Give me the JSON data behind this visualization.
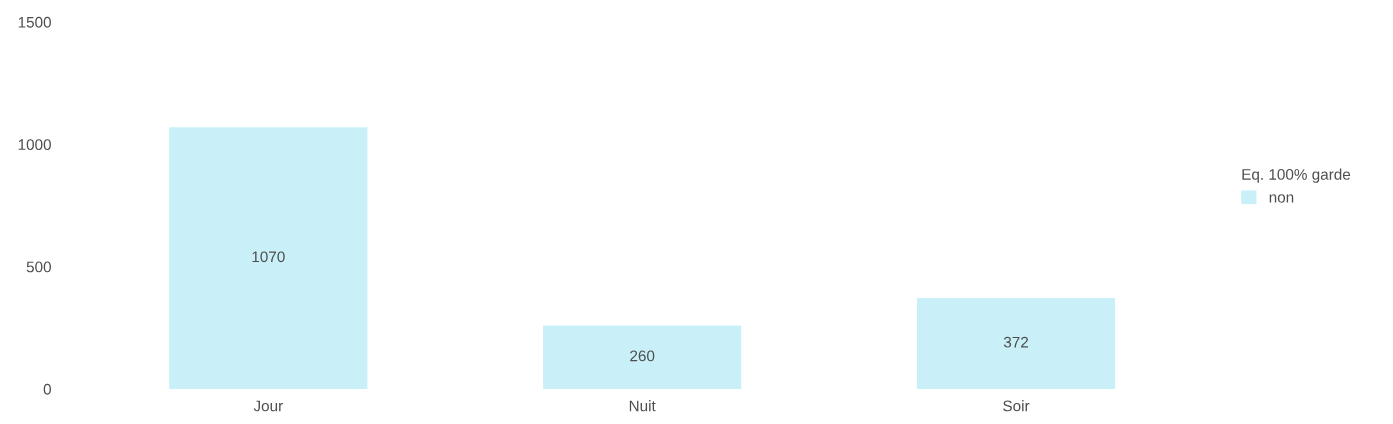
{
  "chart_data": {
    "type": "bar",
    "categories": [
      "Jour",
      "Nuit",
      "Soir"
    ],
    "series": [
      {
        "name": "non",
        "color": "#c9f0f9",
        "values": [
          1070,
          260,
          372
        ]
      }
    ],
    "ylim": [
      0,
      1500
    ],
    "yticks": [
      0,
      500,
      1000,
      1500
    ],
    "legend_title": "Eq. 100% garde",
    "legend": "right",
    "data_labels": true,
    "grid": false
  }
}
